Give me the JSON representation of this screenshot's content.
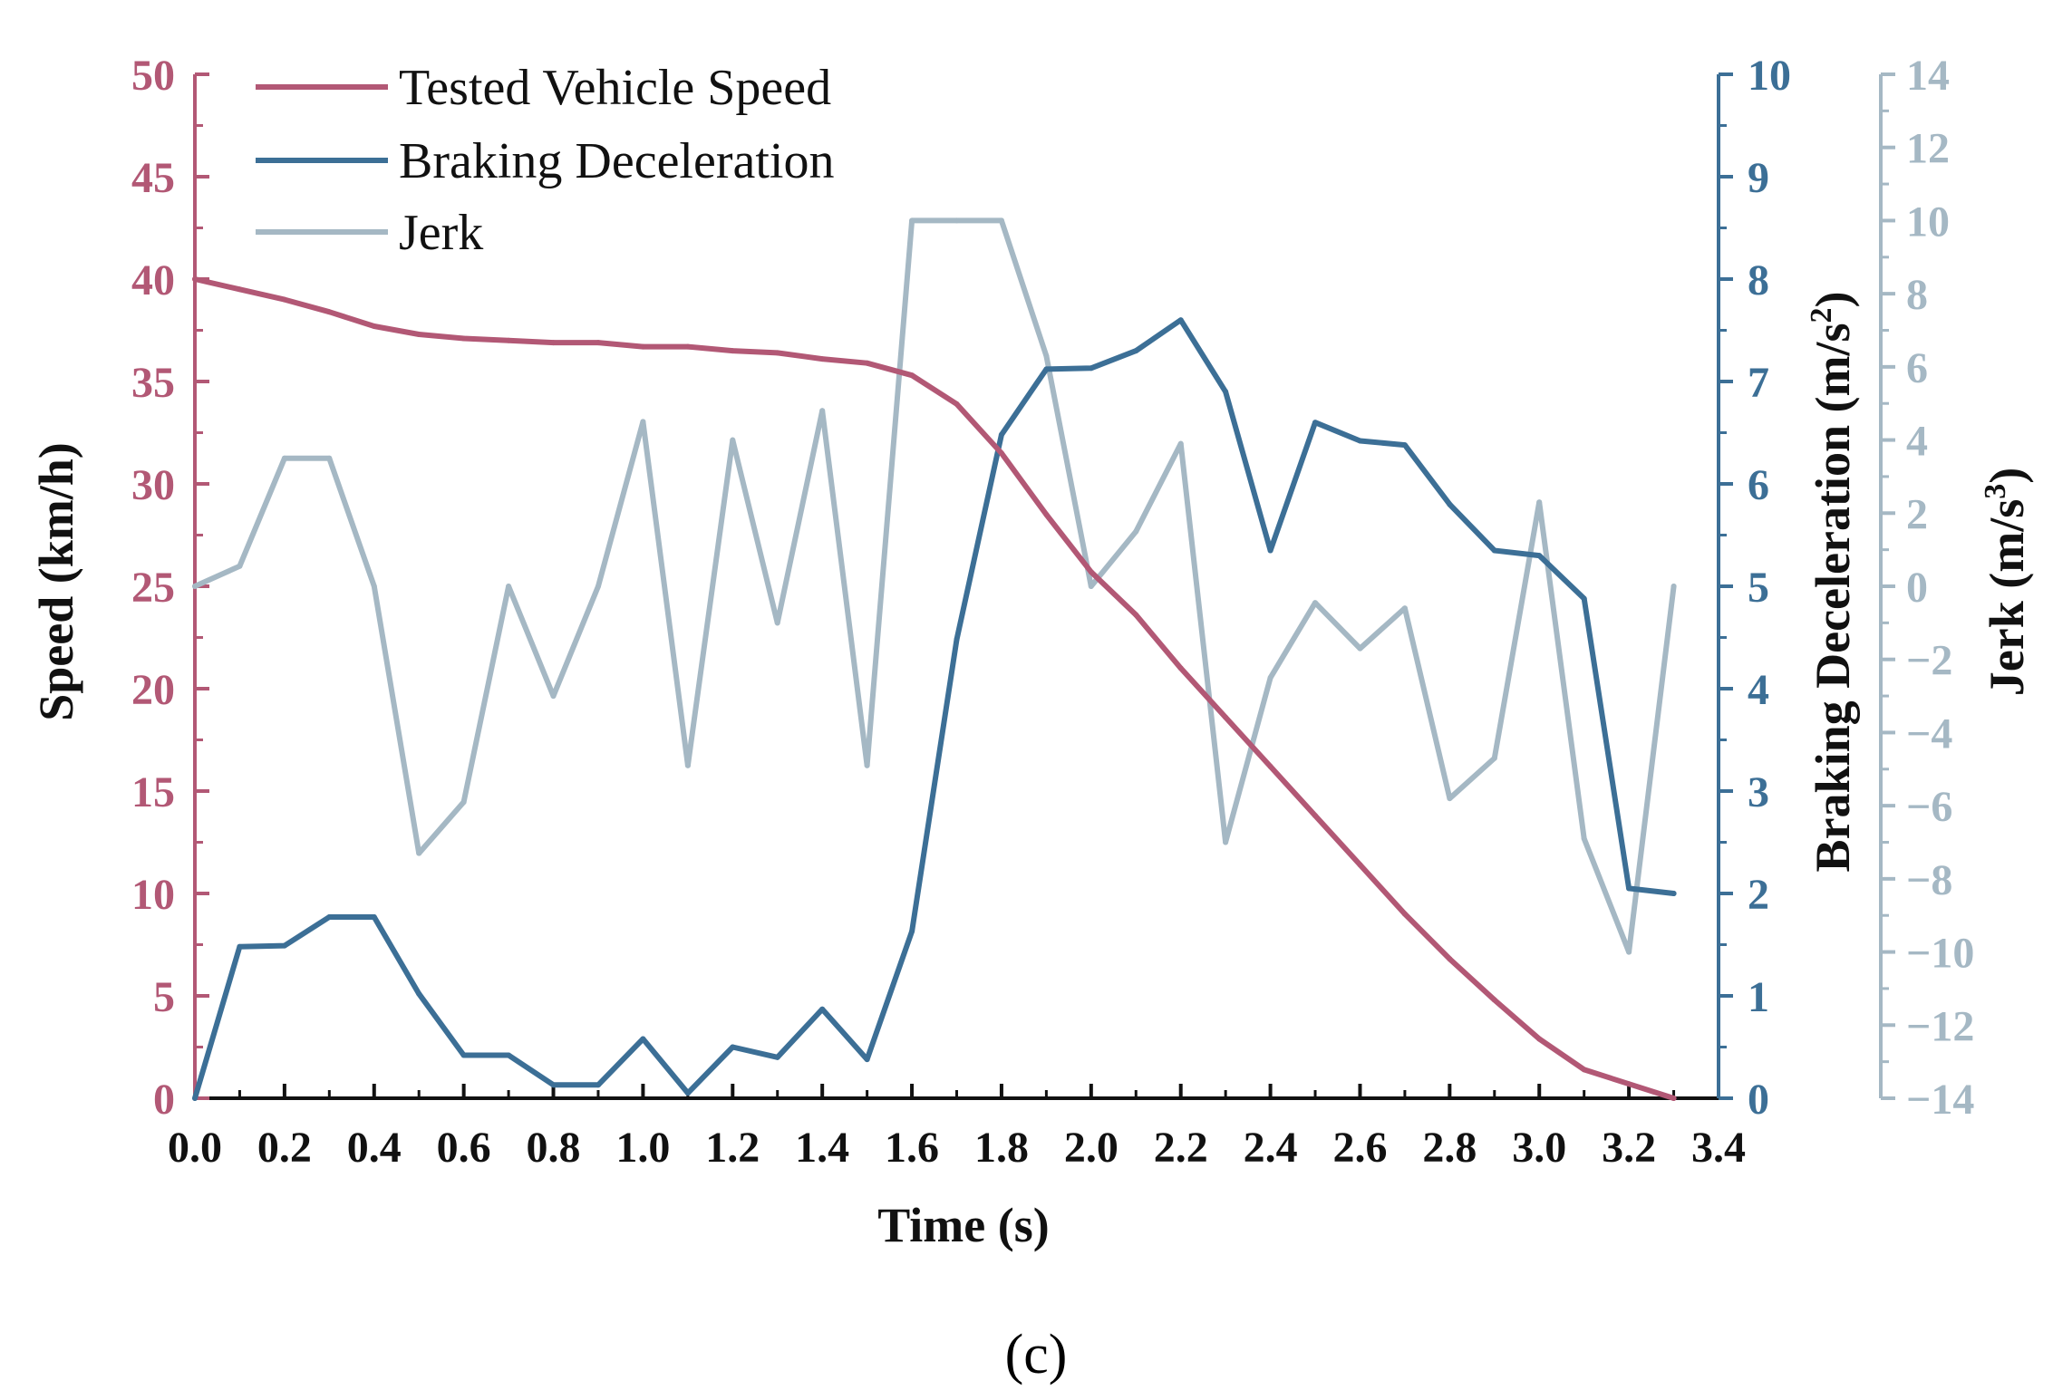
{
  "chart_data": {
    "type": "line",
    "title": "",
    "caption": "(c)",
    "xlabel": "Time (s)",
    "xlim": [
      0.0,
      3.4
    ],
    "xticks": [
      0.0,
      0.2,
      0.4,
      0.6,
      0.8,
      1.0,
      1.2,
      1.4,
      1.6,
      1.8,
      2.0,
      2.2,
      2.4,
      2.6,
      2.8,
      3.0,
      3.2,
      3.4
    ],
    "xtick_labels": [
      "0.0",
      "0.2",
      "0.4",
      "0.6",
      "0.8",
      "1.0",
      "1.2",
      "1.4",
      "1.6",
      "1.8",
      "2.0",
      "2.2",
      "2.4",
      "2.6",
      "2.8",
      "3.0",
      "3.2",
      "3.4"
    ],
    "grid": false,
    "legend_position": "top-left",
    "axes": {
      "speed": {
        "label": "Speed (km/h)",
        "side": "left",
        "color": "#b25875",
        "range": [
          0,
          50
        ],
        "ticks": [
          0,
          5,
          10,
          15,
          20,
          25,
          30,
          35,
          40,
          45,
          50
        ],
        "tick_labels": [
          "0",
          "5",
          "10",
          "15",
          "20",
          "25",
          "30",
          "35",
          "40",
          "45",
          "50"
        ]
      },
      "decel": {
        "label_main": "Braking Deceleration (m/s",
        "label_sup": "2",
        "label_end": ")",
        "side": "right",
        "color": "#3c6f96",
        "range": [
          0,
          10
        ],
        "ticks": [
          0,
          1,
          2,
          3,
          4,
          5,
          6,
          7,
          8,
          9,
          10
        ],
        "tick_labels": [
          "0",
          "1",
          "2",
          "3",
          "4",
          "5",
          "6",
          "7",
          "8",
          "9",
          "10"
        ]
      },
      "jerk": {
        "label_main": "Jerk (m/s",
        "label_sup": "3",
        "label_end": ")",
        "side": "right-outer",
        "color": "#a5b8c4",
        "range": [
          -14,
          14
        ],
        "ticks": [
          -14,
          -12,
          -10,
          -8,
          -6,
          -4,
          -2,
          0,
          2,
          4,
          6,
          8,
          10,
          12,
          14
        ],
        "tick_labels": [
          "−14",
          "−12",
          "−10",
          "−8",
          "−6",
          "−4",
          "−2",
          "0",
          "2",
          "4",
          "6",
          "8",
          "10",
          "12",
          "14"
        ]
      }
    },
    "x": [
      0.0,
      0.1,
      0.2,
      0.3,
      0.4,
      0.5,
      0.6,
      0.7,
      0.8,
      0.9,
      1.0,
      1.1,
      1.2,
      1.3,
      1.4,
      1.5,
      1.6,
      1.7,
      1.8,
      1.9,
      2.0,
      2.1,
      2.2,
      2.3,
      2.4,
      2.5,
      2.6,
      2.7,
      2.8,
      2.9,
      3.0,
      3.1,
      3.2,
      3.3
    ],
    "series": [
      {
        "name": "Tested Vehicle Speed",
        "axis": "speed",
        "color": "#b25875",
        "values": [
          40.0,
          39.5,
          39.0,
          38.4,
          37.7,
          37.3,
          37.1,
          37.0,
          36.9,
          36.9,
          36.7,
          36.7,
          36.5,
          36.4,
          36.1,
          35.9,
          35.3,
          33.9,
          31.5,
          28.5,
          25.7,
          23.6,
          21.0,
          18.6,
          16.2,
          13.8,
          11.4,
          9.0,
          6.8,
          4.8,
          2.9,
          1.4,
          0.7,
          0.0
        ]
      },
      {
        "name": "Braking Deceleration",
        "axis": "decel",
        "color": "#3c6f96",
        "values": [
          0.0,
          1.48,
          1.49,
          1.77,
          1.77,
          1.02,
          0.42,
          0.42,
          0.13,
          0.13,
          0.58,
          0.05,
          0.5,
          0.4,
          0.87,
          0.38,
          1.63,
          4.48,
          6.48,
          7.12,
          7.13,
          7.3,
          7.6,
          6.9,
          5.35,
          6.6,
          6.42,
          6.38,
          5.8,
          5.35,
          5.3,
          4.88,
          2.05,
          2.0
        ]
      },
      {
        "name": "Jerk",
        "axis": "jerk",
        "color": "#a5b8c4",
        "values": [
          0.0,
          0.55,
          3.5,
          3.5,
          0.0,
          -7.3,
          -5.9,
          0.0,
          -3.0,
          0.0,
          4.5,
          -4.9,
          4.0,
          -1.0,
          4.8,
          -4.9,
          10.0,
          10.0,
          10.0,
          6.3,
          0.0,
          1.5,
          3.9,
          -7.0,
          -2.5,
          -0.45,
          -1.7,
          -0.6,
          -5.8,
          -4.7,
          2.3,
          -6.9,
          -10.0,
          0.0
        ]
      }
    ]
  }
}
